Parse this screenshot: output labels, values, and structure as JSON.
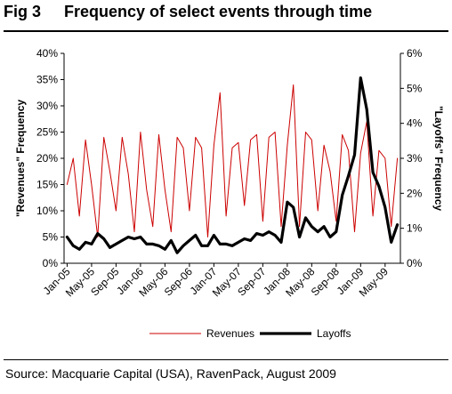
{
  "header": {
    "fig_number": "Fig 3",
    "title": "Frequency of select events through time"
  },
  "source": "Source: Macquarie Capital (USA), RavenPack, August 2009",
  "chart_data": {
    "type": "line",
    "title": "Frequency of select events through time",
    "xlabel": "",
    "left_ylabel": "\"Revenues\" Frequency",
    "right_ylabel": "\"Layoffs\" Frequency",
    "left_ylim": [
      0,
      40
    ],
    "right_ylim": [
      0,
      6
    ],
    "left_ticks": [
      "0%",
      "5%",
      "10%",
      "15%",
      "20%",
      "25%",
      "30%",
      "35%",
      "40%"
    ],
    "right_ticks": [
      "0%",
      "1%",
      "2%",
      "3%",
      "4%",
      "5%",
      "6%"
    ],
    "x_tick_labels": [
      "Jan-05",
      "May-05",
      "Sep-05",
      "Jan-06",
      "May-06",
      "Sep-06",
      "Jan-07",
      "May-07",
      "Sep-07",
      "Jan-08",
      "May-08",
      "Sep-08",
      "Jan-09",
      "May-09"
    ],
    "x_tick_every": 4,
    "grid": false,
    "legend_position": "bottom",
    "series": [
      {
        "name": "Revenues",
        "axis": "left",
        "color": "#cc0000",
        "values": [
          15,
          20,
          9,
          23.5,
          15,
          5,
          24,
          17.5,
          10,
          24,
          17,
          6,
          25,
          14,
          7,
          24.5,
          14,
          6,
          24,
          22,
          10,
          24,
          22,
          5,
          22.5,
          32.5,
          9,
          22,
          23,
          11,
          23.5,
          24.5,
          8,
          24,
          25,
          7,
          22.5,
          34,
          7,
          25,
          23.5,
          10,
          22.5,
          17.5,
          8,
          24.5,
          21.5,
          6,
          21,
          27,
          9,
          21.5,
          20,
          7,
          20
        ]
      },
      {
        "name": "Layoffs",
        "axis": "right",
        "color": "#000000",
        "values": [
          0.75,
          0.5,
          0.4,
          0.6,
          0.55,
          0.85,
          0.7,
          0.45,
          0.55,
          0.65,
          0.75,
          0.7,
          0.75,
          0.55,
          0.55,
          0.5,
          0.4,
          0.65,
          0.3,
          0.5,
          0.65,
          0.8,
          0.5,
          0.5,
          0.8,
          0.55,
          0.55,
          0.5,
          0.6,
          0.7,
          0.65,
          0.85,
          0.8,
          0.9,
          0.8,
          0.6,
          1.75,
          1.6,
          0.75,
          1.3,
          1.05,
          0.9,
          1.05,
          0.75,
          0.9,
          1.95,
          2.5,
          3.1,
          5.3,
          4.4,
          2.6,
          2.2,
          1.6,
          0.6,
          1.1
        ]
      }
    ]
  }
}
